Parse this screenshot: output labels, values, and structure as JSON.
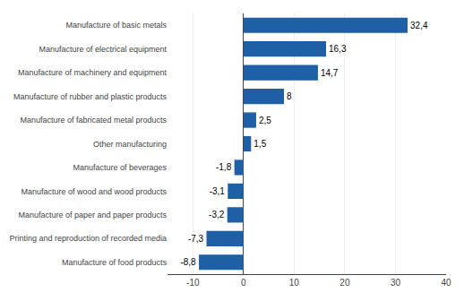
{
  "chart_data": {
    "type": "bar",
    "orientation": "horizontal",
    "categories": [
      "Manufacture of basic metals",
      "Manufacture of electrical equipment",
      "Manufacture of machinery and equipment",
      "Manufacture of rubber and plastic products",
      "Manufacture of fabricated metal products",
      "Other manufacturing",
      "Manufacture of beverages",
      "Manufacture of wood and wood products",
      "Manufacture of paper and paper products",
      "Printing and reproduction of recorded media",
      "Manufacture of food products"
    ],
    "values": [
      32.4,
      16.3,
      14.7,
      8.0,
      2.5,
      1.5,
      -1.8,
      -3.1,
      -3.2,
      -7.3,
      -8.8
    ],
    "value_labels": [
      "32,4",
      "16,3",
      "14,7",
      "8",
      "2,5",
      "1,5",
      "-1,8",
      "-3,1",
      "-3,2",
      "-7,3",
      "-8,8"
    ],
    "data_labels": true,
    "color": "#1f5fa6",
    "xlim": [
      -15,
      40
    ],
    "xticks": [
      -10,
      0,
      10,
      20,
      30,
      40
    ],
    "grid": true
  }
}
